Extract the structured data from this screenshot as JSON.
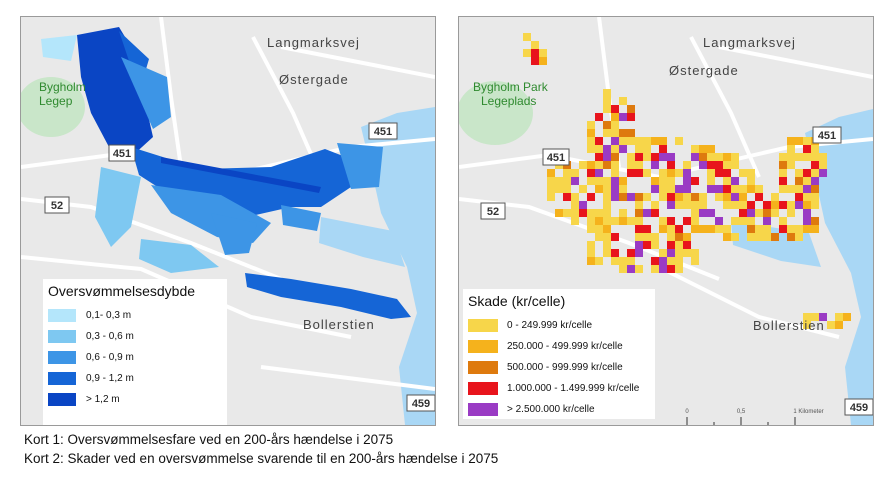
{
  "colors": {
    "land": "#e9e9e9",
    "water": "#a9d7f5",
    "park": "#c9e6c9",
    "road": "#ffffff",
    "road_label": "#444444"
  },
  "map1": {
    "place_labels": {
      "street_north": "Langmarksvej",
      "street_east": "Østergade",
      "park": "Bygholm\nLegep",
      "neighborhood": "Bollerstien"
    },
    "road_shields": [
      "451",
      "451",
      "52",
      "459"
    ],
    "legend": {
      "title": "Oversvømmelsesdybde",
      "items": [
        {
          "label": "0,1- 0,3 m",
          "color": "#b4e6fb"
        },
        {
          "label": "0,3 - 0,6 m",
          "color": "#7ec8f1"
        },
        {
          "label": "0,6 - 0,9 m",
          "color": "#3d95e6"
        },
        {
          "label": "0,9 - 1,2 m",
          "color": "#1565d6"
        },
        {
          "label": "> 1,2 m",
          "color": "#0a45c4"
        }
      ]
    }
  },
  "map2": {
    "place_labels": {
      "street_north": "Langmarksvej",
      "street_east": "Østergade",
      "park": "Bygholm Park\nLegeplads",
      "neighborhood": "Bollerstien"
    },
    "road_shields": [
      "451",
      "451",
      "52",
      "459"
    ],
    "legend": {
      "title": "Skade (kr/celle)",
      "items": [
        {
          "label": "0 - 249.999 kr/celle",
          "color": "#f7d64a"
        },
        {
          "label": "250.000 - 499.999 kr/celle",
          "color": "#f5b21c"
        },
        {
          "label": "500.000 - 999.999 kr/celle",
          "color": "#de7a0e"
        },
        {
          "label": "1.000.000 - 1.499.999 kr/celle",
          "color": "#e8141c"
        },
        {
          "label": "> 2.500.000 kr/celle",
          "color": "#9a3bc4"
        }
      ]
    },
    "scale_bar": {
      "ticks": [
        "0",
        "0,5",
        "1"
      ],
      "unit": "Kilometer"
    }
  },
  "captions": {
    "caption1": "Kort 1: Oversvømmelsesfare ved en 200-års hændelse i 2075",
    "caption2": "Kort 2: Skader ved en oversvømmelse svarende til en 200-års hændelse i 2075"
  }
}
